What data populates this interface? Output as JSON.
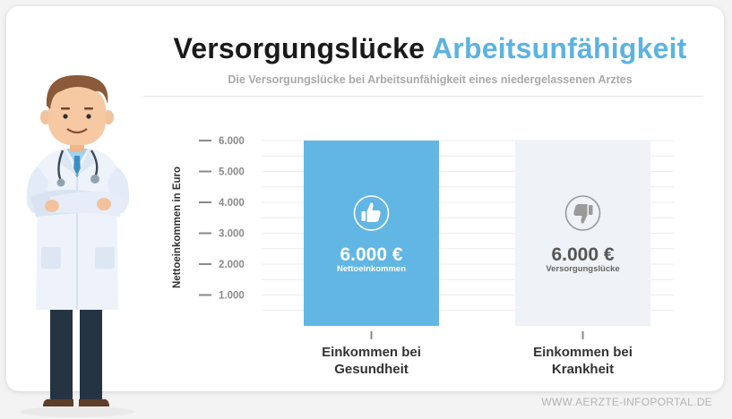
{
  "header": {
    "title_main": "Versorgungslücke",
    "title_accent": "Arbeitsunfähigkeit",
    "subtitle": "Die Versorgungslücke bei Arbeitsunfähigkeit eines niedergelassenen Arztes"
  },
  "footer": {
    "watermark": "WWW.AERZTE-INFOPORTAL.DE"
  },
  "colors": {
    "accent": "#5db3e0",
    "bar_health": "#62b6e3",
    "bar_sick": "#eff2f6",
    "text_dark": "#333333",
    "text_muted": "#8a8a8a",
    "icon_grey": "#9a9a9a"
  },
  "chart_data": {
    "type": "bar",
    "title": "Versorgungslücke Arbeitsunfähigkeit",
    "ylabel": "Nettoeinkommen in Euro",
    "xlabel": "",
    "ylim": [
      0,
      6000
    ],
    "yticks": [
      1000,
      2000,
      3000,
      4000,
      5000,
      6000
    ],
    "ytick_labels": [
      "1.000",
      "2.000",
      "3.000",
      "4.000",
      "5.000",
      "6.000"
    ],
    "grid": true,
    "categories": [
      "Einkommen bei Gesundheit",
      "Einkommen bei Krankheit"
    ],
    "category_lines": [
      [
        "Einkommen bei",
        "Gesundheit"
      ],
      [
        "Einkommen bei",
        "Krankheit"
      ]
    ],
    "values": [
      6000,
      6000
    ],
    "bar_value_labels": [
      "6.000 €",
      "6.000 €"
    ],
    "bar_sub_labels": [
      "Nettoeinkommen",
      "Versorgungslücke"
    ],
    "bar_icons": [
      "thumbs-up-icon",
      "thumbs-down-icon"
    ]
  }
}
